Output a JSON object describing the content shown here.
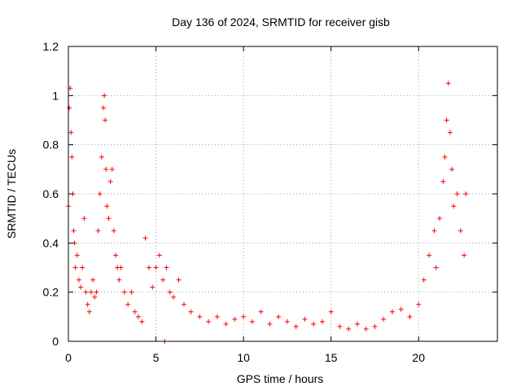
{
  "chart_data": {
    "type": "scatter",
    "title": "Day 136 of 2024, SRMTID for receiver gisb",
    "xlabel": "GPS time / hours",
    "ylabel": "SRMTID / TECUs",
    "xlim": [
      0,
      24.5
    ],
    "ylim": [
      0,
      1.2
    ],
    "xticks": [
      0,
      5,
      10,
      15,
      20
    ],
    "xtick_labels": [
      "0",
      "5",
      "10",
      "15",
      "20"
    ],
    "yticks": [
      0,
      0.2,
      0.4,
      0.6,
      0.8,
      1.0,
      1.2
    ],
    "ytick_labels": [
      "0",
      "0.2",
      "0.4",
      "0.6",
      "0.8",
      "1",
      "1.2"
    ],
    "grid": true,
    "marker": "plus",
    "color": "#ff0000",
    "series": [
      {
        "name": "SRMTID",
        "x": [
          0.0,
          0.05,
          0.1,
          0.15,
          0.2,
          0.25,
          0.3,
          0.35,
          0.4,
          0.5,
          0.6,
          0.7,
          0.8,
          0.9,
          1.0,
          1.1,
          1.2,
          1.3,
          1.4,
          1.5,
          1.6,
          1.7,
          1.8,
          1.9,
          2.0,
          2.05,
          2.1,
          2.15,
          2.2,
          2.3,
          2.4,
          2.5,
          2.6,
          2.7,
          2.8,
          2.9,
          3.0,
          3.2,
          3.4,
          3.6,
          3.8,
          4.0,
          4.2,
          4.4,
          4.6,
          4.8,
          5.0,
          5.2,
          5.4,
          5.5,
          5.6,
          5.8,
          6.0,
          6.3,
          6.6,
          7.0,
          7.5,
          8.0,
          8.5,
          9.0,
          9.5,
          10.0,
          10.5,
          11.0,
          11.5,
          12.0,
          12.5,
          13.0,
          13.5,
          14.0,
          14.5,
          15.0,
          15.5,
          16.0,
          16.5,
          17.0,
          17.5,
          18.0,
          18.5,
          19.0,
          19.5,
          20.0,
          20.3,
          20.6,
          20.9,
          21.0,
          21.2,
          21.4,
          21.5,
          21.6,
          21.7,
          21.8,
          21.9,
          22.0,
          22.2,
          22.4,
          22.6,
          22.7
        ],
        "y": [
          0.55,
          0.95,
          1.03,
          0.85,
          0.75,
          0.6,
          0.45,
          0.4,
          0.3,
          0.35,
          0.25,
          0.22,
          0.3,
          0.5,
          0.2,
          0.15,
          0.12,
          0.2,
          0.25,
          0.18,
          0.2,
          0.45,
          0.6,
          0.75,
          0.95,
          1.0,
          0.9,
          0.7,
          0.55,
          0.5,
          0.65,
          0.7,
          0.45,
          0.35,
          0.3,
          0.25,
          0.3,
          0.2,
          0.15,
          0.2,
          0.12,
          0.1,
          0.08,
          0.42,
          0.3,
          0.22,
          0.3,
          0.35,
          0.25,
          0.0,
          0.3,
          0.2,
          0.18,
          0.25,
          0.15,
          0.12,
          0.1,
          0.08,
          0.1,
          0.07,
          0.09,
          0.1,
          0.08,
          0.12,
          0.07,
          0.1,
          0.08,
          0.06,
          0.09,
          0.07,
          0.08,
          0.12,
          0.06,
          0.05,
          0.07,
          0.05,
          0.06,
          0.09,
          0.12,
          0.13,
          0.1,
          0.15,
          0.25,
          0.35,
          0.45,
          0.3,
          0.5,
          0.65,
          0.75,
          0.9,
          1.05,
          0.85,
          0.7,
          0.55,
          0.6,
          0.45,
          0.35,
          0.6
        ]
      }
    ]
  }
}
